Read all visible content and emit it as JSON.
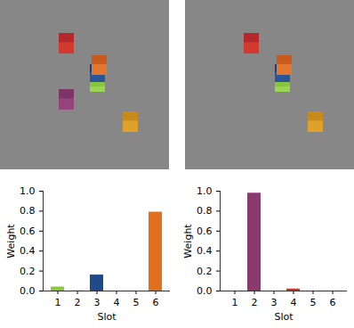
{
  "chart_data": [
    {
      "type": "bar",
      "categories": [
        "1",
        "2",
        "3",
        "4",
        "5",
        "6"
      ],
      "values": [
        0.04,
        0.005,
        0.16,
        0,
        0,
        0.79
      ],
      "colors": [
        "#8dc63f",
        "#c9c9c9",
        "#1f4a8a",
        "#c0392b",
        "#8b3a6e",
        "#e07020"
      ],
      "x_label": "Slot",
      "y_label": "Weight",
      "ylim": [
        0,
        1
      ],
      "yticks": [
        {
          "value": 0,
          "label": "0.0"
        },
        {
          "value": 0.2,
          "label": "0.2"
        },
        {
          "value": 0.4,
          "label": "0.4"
        },
        {
          "value": 0.6,
          "label": "0.6"
        },
        {
          "value": 0.8,
          "label": "0.8"
        },
        {
          "value": 1,
          "label": "1.0"
        }
      ],
      "grid": false
    },
    {
      "type": "bar",
      "categories": [
        "1",
        "2",
        "3",
        "4",
        "5",
        "6"
      ],
      "values": [
        0,
        0.98,
        0,
        0.02,
        0,
        0
      ],
      "colors": [
        "#8dc63f",
        "#8b3a6e",
        "#1f4a8a",
        "#c0392b",
        "#e07020",
        "#c9a030"
      ],
      "x_label": "Slot",
      "y_label": "Weight",
      "ylim": [
        0,
        1
      ],
      "yticks": [
        {
          "value": 0,
          "label": "0.0"
        },
        {
          "value": 0.2,
          "label": "0.2"
        },
        {
          "value": 0.4,
          "label": "0.4"
        },
        {
          "value": 0.6,
          "label": "0.6"
        },
        {
          "value": 0.8,
          "label": "0.8"
        },
        {
          "value": 1,
          "label": "1.0"
        }
      ],
      "grid": false
    }
  ]
}
